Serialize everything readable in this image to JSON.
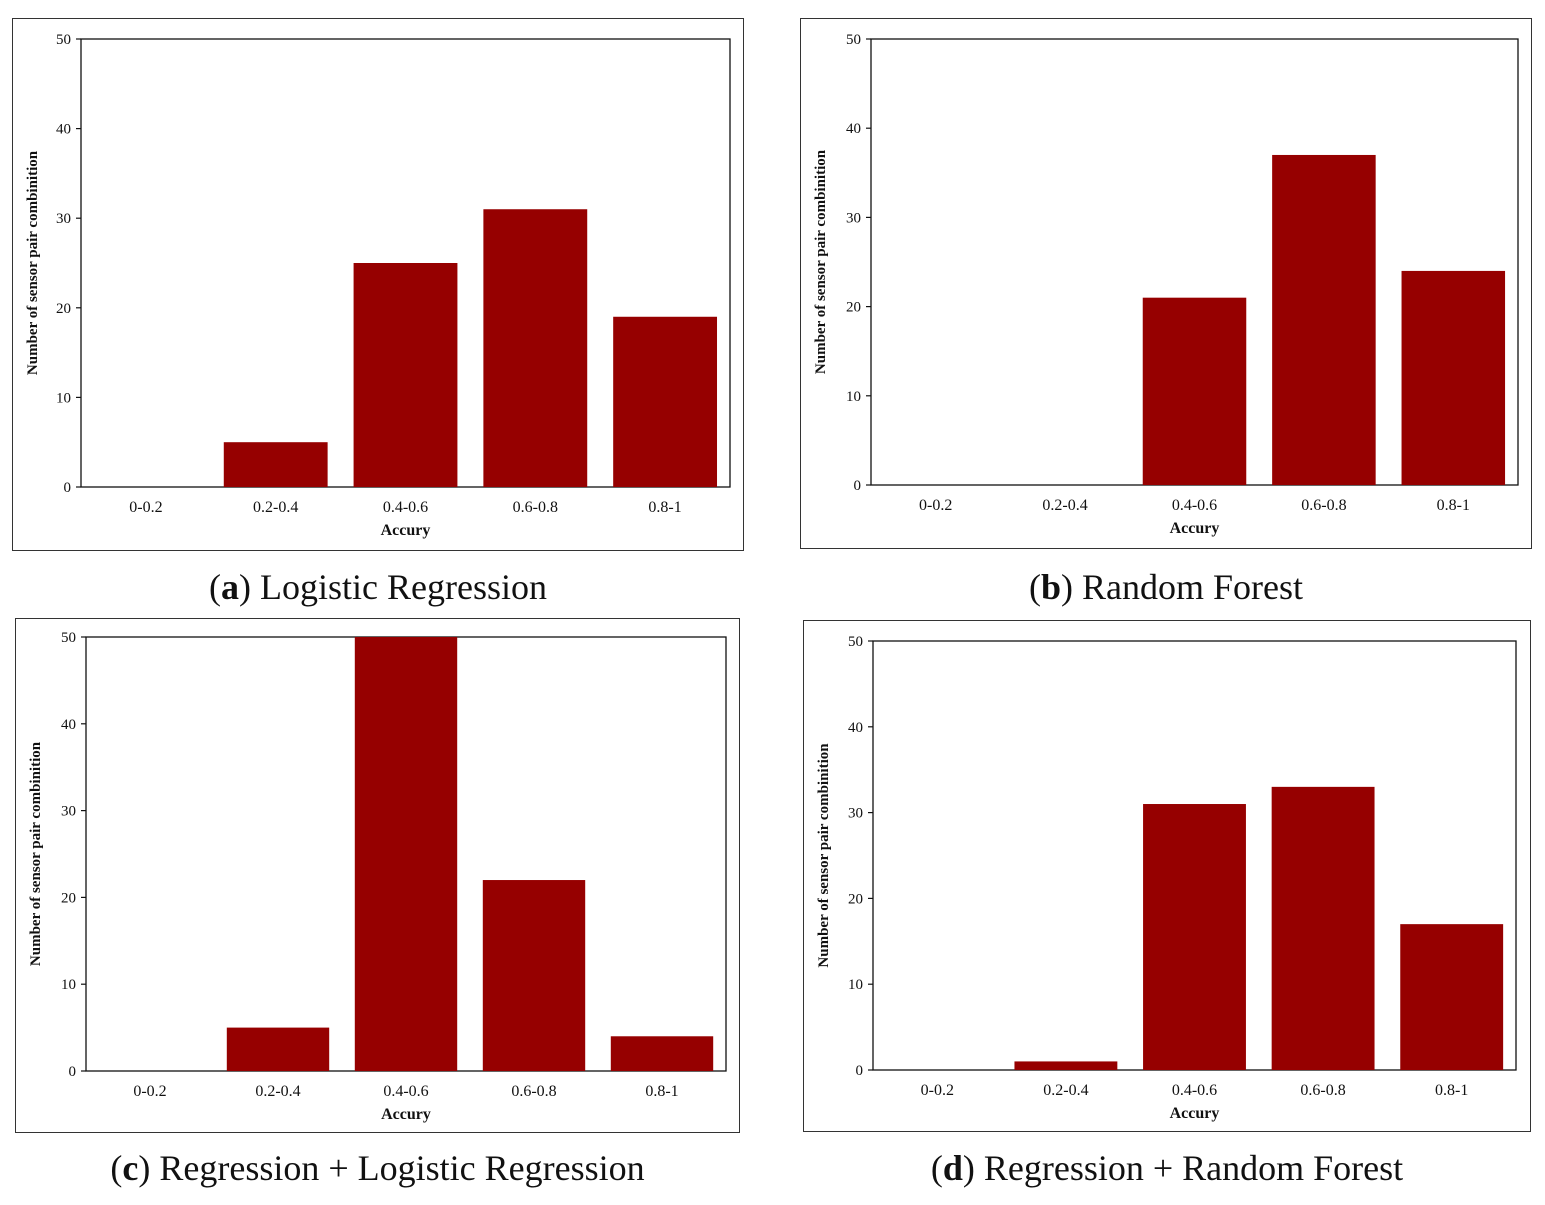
{
  "bar_color": "#960000",
  "chart_data": [
    {
      "type": "bar",
      "panel_letter": "a",
      "caption": "Logistic Regression",
      "categories": [
        "0-0.2",
        "0.2-0.4",
        "0.4-0.6",
        "0.6-0.8",
        "0.8-1"
      ],
      "values": [
        0,
        5,
        25,
        31,
        19
      ],
      "xlabel": "Accury",
      "ylabel": "Number of sensor pair combinition",
      "ylim": [
        0,
        50
      ],
      "yticks": [
        0,
        10,
        20,
        30,
        40,
        50
      ],
      "grid": false
    },
    {
      "type": "bar",
      "panel_letter": "b",
      "caption": "Random Forest",
      "categories": [
        "0-0.2",
        "0.2-0.4",
        "0.4-0.6",
        "0.6-0.8",
        "0.8-1"
      ],
      "values": [
        0,
        0,
        21,
        37,
        24
      ],
      "xlabel": "Accury",
      "ylabel": "Number of sensor pair combinition",
      "ylim": [
        0,
        50
      ],
      "yticks": [
        0,
        10,
        20,
        30,
        40,
        50
      ],
      "grid": false
    },
    {
      "type": "bar",
      "panel_letter": "c",
      "caption": "Regression + Logistic Regression",
      "categories": [
        "0-0.2",
        "0.2-0.4",
        "0.4-0.6",
        "0.6-0.8",
        "0.8-1"
      ],
      "values": [
        0,
        5,
        50,
        22,
        4
      ],
      "xlabel": "Accury",
      "ylabel": "Number of sensor pair combinition",
      "ylim": [
        0,
        50
      ],
      "yticks": [
        0,
        10,
        20,
        30,
        40,
        50
      ],
      "grid": false
    },
    {
      "type": "bar",
      "panel_letter": "d",
      "caption": "Regression + Random Forest",
      "categories": [
        "0-0.2",
        "0.2-0.4",
        "0.4-0.6",
        "0.6-0.8",
        "0.8-1"
      ],
      "values": [
        0,
        1,
        31,
        33,
        17
      ],
      "xlabel": "Accury",
      "ylabel": "Number of sensor pair combinition",
      "ylim": [
        0,
        50
      ],
      "yticks": [
        0,
        10,
        20,
        30,
        40,
        50
      ],
      "grid": false
    }
  ]
}
